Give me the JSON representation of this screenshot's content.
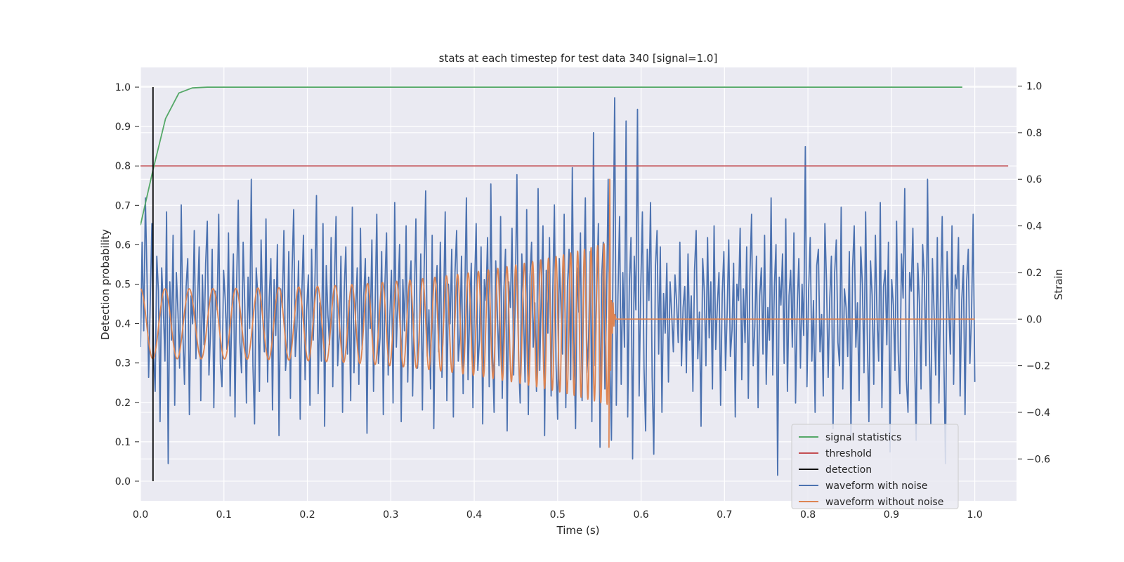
{
  "chart_data": {
    "type": "line",
    "title": "stats at each timestep for test data 340 [signal=1.0]",
    "xlabel": "Time (s)",
    "ylabel": "Detection probability",
    "y2label": "Strain",
    "xlim": [
      0.0,
      1.05
    ],
    "ylim": [
      -0.05,
      1.05
    ],
    "y2lim": [
      -0.78,
      1.08
    ],
    "grid": true,
    "legend_position": "lower-right",
    "xticks": [
      "0.0",
      "0.1",
      "0.2",
      "0.3",
      "0.4",
      "0.5",
      "0.6",
      "0.7",
      "0.8",
      "0.9",
      "1.0"
    ],
    "xtick_values": [
      0.0,
      0.1,
      0.2,
      0.3,
      0.4,
      0.5,
      0.6,
      0.7,
      0.8,
      0.9,
      1.0
    ],
    "yticks": [
      "0.0",
      "0.1",
      "0.2",
      "0.3",
      "0.4",
      "0.5",
      "0.6",
      "0.7",
      "0.8",
      "0.9",
      "1.0"
    ],
    "ytick_values": [
      0.0,
      0.1,
      0.2,
      0.3,
      0.4,
      0.5,
      0.6,
      0.7,
      0.8,
      0.9,
      1.0
    ],
    "y2ticks": [
      "−0.6",
      "−0.4",
      "−0.2",
      "0.0",
      "0.2",
      "0.4",
      "0.6",
      "0.8",
      "1.0"
    ],
    "y2tick_values": [
      -0.6,
      -0.4,
      -0.2,
      0.0,
      0.2,
      0.4,
      0.6,
      0.8,
      1.0
    ],
    "colors": {
      "plot_bg": "#eaeaf2",
      "grid": "#ffffff",
      "signal_statistics": "#55a868",
      "threshold": "#c44e52",
      "detection": "#000000",
      "waveform_with_noise": "#4c72b0",
      "waveform_without_noise": "#dd8452"
    },
    "series": [
      {
        "name": "signal statistics",
        "axis": "left",
        "x": [
          0.0,
          0.015,
          0.03,
          0.046,
          0.062,
          0.08,
          0.1,
          0.3,
          0.5,
          0.7,
          0.9,
          0.985
        ],
        "y": [
          0.65,
          0.79,
          0.92,
          0.985,
          0.998,
          1.0,
          1.0,
          1.0,
          1.0,
          1.0,
          1.0,
          1.0
        ]
      },
      {
        "name": "threshold",
        "axis": "left",
        "x": [
          0.0,
          1.04
        ],
        "y": [
          0.8,
          0.8
        ]
      },
      {
        "name": "detection",
        "axis": "left",
        "x": [
          0.015,
          0.015
        ],
        "y": [
          0.0,
          1.0
        ]
      },
      {
        "name": "waveform with noise",
        "axis": "right",
        "x_start": 0.0,
        "x_end": 1.0,
        "y": [
          -0.12,
          0.33,
          -0.05,
          0.52,
          0.18,
          -0.25,
          0.08,
          0.41,
          -0.15,
          -0.31,
          0.27,
          0.12,
          -0.44,
          0.22,
          0.05,
          -0.18,
          0.46,
          -0.62,
          0.16,
          -0.09,
          0.36,
          -0.37,
          0.2,
          0.03,
          -0.21,
          0.49,
          -0.06,
          -0.28,
          0.14,
          0.26,
          -0.41,
          0.1,
          -0.02,
          0.38,
          -0.17,
          0.07,
          0.31,
          -0.35,
          0.19,
          -0.11,
          0.24,
          0.42,
          -0.24,
          -0.05,
          0.3,
          -0.38,
          0.12,
          0.04,
          0.45,
          -0.19,
          -0.29,
          0.21,
          0.08,
          -0.13,
          0.37,
          -0.33,
          0.02,
          0.28,
          -0.42,
          0.15,
          0.51,
          -0.1,
          -0.23,
          0.33,
          0.06,
          -0.36,
          0.18,
          -0.04,
          0.6,
          -0.2,
          -0.45,
          0.22,
          0.1,
          -0.31,
          0.34,
          0.01,
          -0.14,
          0.43,
          -0.27,
          0.09,
          0.26,
          -0.39,
          0.17,
          -0.07,
          0.32,
          -0.5,
          0.13,
          0.05,
          0.38,
          -0.22,
          -0.12,
          0.29,
          -0.34,
          0.2,
          0.47,
          -0.16,
          -0.03,
          0.25,
          -0.43,
          0.11,
          0.36,
          -0.26,
          0.04,
          0.19,
          -0.37,
          0.3,
          -0.09,
          0.14,
          0.53,
          -0.32,
          0.07,
          -0.18,
          0.41,
          -0.46,
          0.23,
          0.02,
          -0.11,
          0.35,
          -0.29,
          0.16,
          0.44,
          -0.2,
          -0.06,
          0.27,
          -0.4,
          0.12,
          0.31,
          -0.15,
          0.08,
          -0.35,
          0.48,
          -0.23,
          0.03,
          0.22,
          -0.28,
          0.39,
          -0.13,
          0.1,
          0.26,
          -0.49,
          0.18,
          -0.04,
          0.34,
          -0.31,
          0.06,
          0.45,
          -0.19,
          -0.08,
          0.29,
          -0.41,
          0.15,
          0.37,
          -0.24,
          0.01,
          0.21,
          -0.36,
          0.5,
          -0.12,
          0.09,
          0.32,
          -0.44,
          0.17,
          -0.05,
          0.4,
          -0.27,
          0.13,
          0.25,
          -0.33,
          0.07,
          0.43,
          -0.21,
          -0.1,
          0.28,
          -0.39,
          0.19,
          0.55,
          -0.16,
          0.04,
          -0.3,
          0.36,
          -0.47,
          0.11,
          0.23,
          -0.14,
          0.33,
          -0.25,
          0.06,
          0.46,
          -0.35,
          0.15,
          -0.02,
          0.3,
          -0.42,
          0.2,
          0.38,
          -0.18,
          -0.07,
          0.27,
          -0.32,
          0.1,
          0.52,
          -0.26,
          0.03,
          0.24,
          -0.38,
          0.14,
          0.41,
          -0.22,
          -0.09,
          0.31,
          -0.45,
          0.17,
          0.08,
          0.35,
          -0.29,
          0.58,
          -0.13,
          -0.4,
          0.25,
          0.02,
          -0.2,
          0.44,
          -0.34,
          0.12,
          0.3,
          -0.48,
          0.16,
          0.05,
          0.39,
          -0.24,
          0.09,
          0.62,
          -0.17,
          -0.36,
          0.28,
          0.04,
          -0.27,
          0.47,
          -0.41,
          0.18,
          0.33,
          -0.12,
          0.07,
          -0.31,
          0.56,
          -0.22,
          0.13,
          0.4,
          -0.5,
          0.21,
          -0.06,
          0.35,
          -0.33,
          0.11,
          0.49,
          -0.19,
          -0.43,
          0.26,
          0.06,
          -0.15,
          0.45,
          -0.38,
          0.14,
          0.3,
          -0.26,
          0.65,
          -0.1,
          -0.47,
          0.22,
          0.03,
          0.37,
          -0.35,
          0.16,
          0.52,
          -0.23,
          -0.08,
          0.29,
          -0.44,
          0.8,
          -0.2,
          0.12,
          0.41,
          -0.55,
          0.18,
          0.33,
          -0.3,
          0.07,
          0.6,
          -0.16,
          -0.52,
          0.25,
          0.95,
          -0.37,
          0.1,
          0.44,
          -0.28,
          0.2,
          -0.12,
          0.85,
          -0.42,
          0.15,
          0.35,
          -0.6,
          0.27,
          0.04,
          0.9,
          -0.33,
          0.13,
          0.46,
          -0.21,
          -0.48,
          0.3,
          0.08,
          0.5,
          -0.25,
          -0.58,
          0.22,
          0.38,
          -0.15,
          0.31,
          -0.4,
          0.11,
          -0.06,
          0.24,
          -0.27,
          0.16,
          0.02,
          -0.14,
          0.19,
          0.07,
          -0.1,
          0.33,
          -0.2,
          0.05,
          0.14,
          -0.23,
          0.28,
          -0.09,
          0.1,
          -0.31,
          0.21,
          0.38,
          -0.17,
          0.03,
          -0.46,
          0.26,
          0.12,
          -0.2,
          0.35,
          -0.08,
          0.16,
          -0.3,
          0.4,
          -0.13,
          0.06,
          0.2,
          -0.37,
          0.11,
          0.29,
          -0.22,
          0.02,
          0.34,
          -0.16,
          -0.05,
          0.24,
          -0.42,
          0.15,
          0.08,
          0.39,
          -0.26,
          0.13,
          -0.1,
          0.31,
          -0.34,
          0.19,
          0.45,
          -0.2,
          -0.03,
          0.27,
          -0.38,
          0.1,
          0.22,
          -0.15,
          0.36,
          -0.28,
          0.05,
          -0.09,
          0.52,
          -0.24,
          0.14,
          0.32,
          -0.67,
          0.18,
          0.06,
          0.28,
          -0.19,
          0.43,
          -0.31,
          0.1,
          0.21,
          -0.12,
          0.37,
          -0.36,
          0.04,
          0.26,
          -0.21,
          0.15,
          -0.07,
          0.74,
          -0.29,
          0.12,
          0.35,
          -0.18,
          0.08,
          -0.4,
          0.23,
          0.3,
          -0.14,
          0.02,
          -0.33,
          0.41,
          0.16,
          -0.25,
          0.09,
          0.27,
          -0.47,
          0.2,
          0.34,
          -0.1,
          -0.2,
          0.48,
          -0.3,
          0.13,
          0.05,
          -0.16,
          0.29,
          -0.5,
          0.22,
          0.4,
          -0.12,
          0.07,
          -0.35,
          0.31,
          0.15,
          -0.23,
          0.46,
          -0.06,
          -0.44,
          0.25,
          0.1,
          -0.28,
          0.36,
          0.01,
          -0.18,
          0.5,
          -0.38,
          0.14,
          0.21,
          -0.11,
          0.33,
          -0.57,
          0.17,
          0.06,
          -0.22,
          0.42,
          -0.14,
          -0.32,
          0.28,
          0.09,
          0.56,
          -0.26,
          -0.4,
          0.2,
          0.12,
          0.39,
          -0.13,
          -0.52,
          0.24,
          0.07,
          -0.3,
          0.32,
          0.18,
          -0.2,
          0.6,
          -0.09,
          -0.45,
          0.26,
          0.03,
          -0.24,
          0.35,
          -0.36,
          0.11,
          0.44,
          -0.17,
          -0.62,
          0.29,
          0.05,
          -0.15,
          0.4,
          -0.28,
          0.19,
          0.13,
          0.35,
          -0.33,
          0.08,
          0.23,
          -0.41,
          0.16,
          0.3,
          -0.19,
          0.02,
          0.45,
          -0.27
        ]
      },
      {
        "name": "waveform without noise",
        "axis": "right",
        "x": [
          0.0,
          0.565
        ],
        "sinusoid": {
          "amp_start": 0.15,
          "amp_end": 0.35,
          "freq_start": 34,
          "freq_end": 135,
          "merger_x": 0.562,
          "ringdown_peak": 0.6,
          "ringdown_trough": -0.55
        },
        "y_after_merger": 0.0,
        "x_after_merger": [
          0.57,
          1.0
        ]
      }
    ]
  },
  "legend": [
    {
      "label": "signal statistics",
      "color_key": "signal_statistics"
    },
    {
      "label": "threshold",
      "color_key": "threshold"
    },
    {
      "label": "detection",
      "color_key": "detection"
    },
    {
      "label": "waveform with noise",
      "color_key": "waveform_with_noise"
    },
    {
      "label": "waveform without noise",
      "color_key": "waveform_without_noise"
    }
  ]
}
